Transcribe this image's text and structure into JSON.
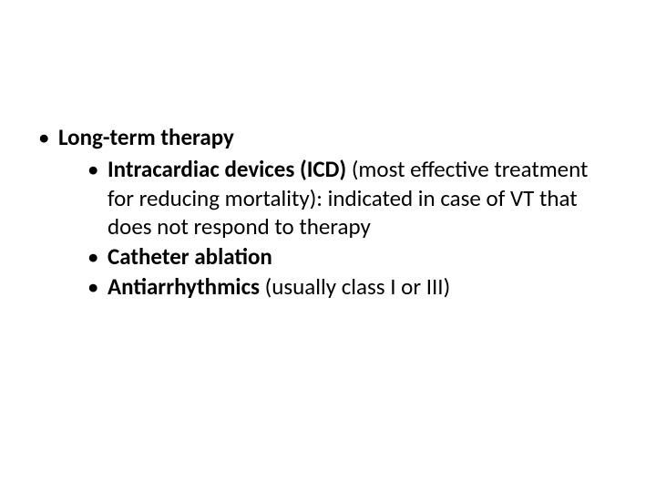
{
  "slide": {
    "background_color": "#ffffff",
    "text_color": "#000000",
    "font_family": "Calibri",
    "body_fontsize_pt": 25,
    "bullet_char": "•",
    "bullets": {
      "level1": {
        "title": "Long-term therapy"
      },
      "level2": [
        {
          "bold_lead": "Intracardiac devices (ICD)",
          "rest": " (most effective treatment for reducing mortality): indicated in case of VT that does not respond to therapy"
        },
        {
          "bold_lead": "Catheter ablation",
          "rest": ""
        },
        {
          "bold_lead": "Antiarrhythmics",
          "rest": " (usually class I or III)"
        }
      ]
    }
  }
}
